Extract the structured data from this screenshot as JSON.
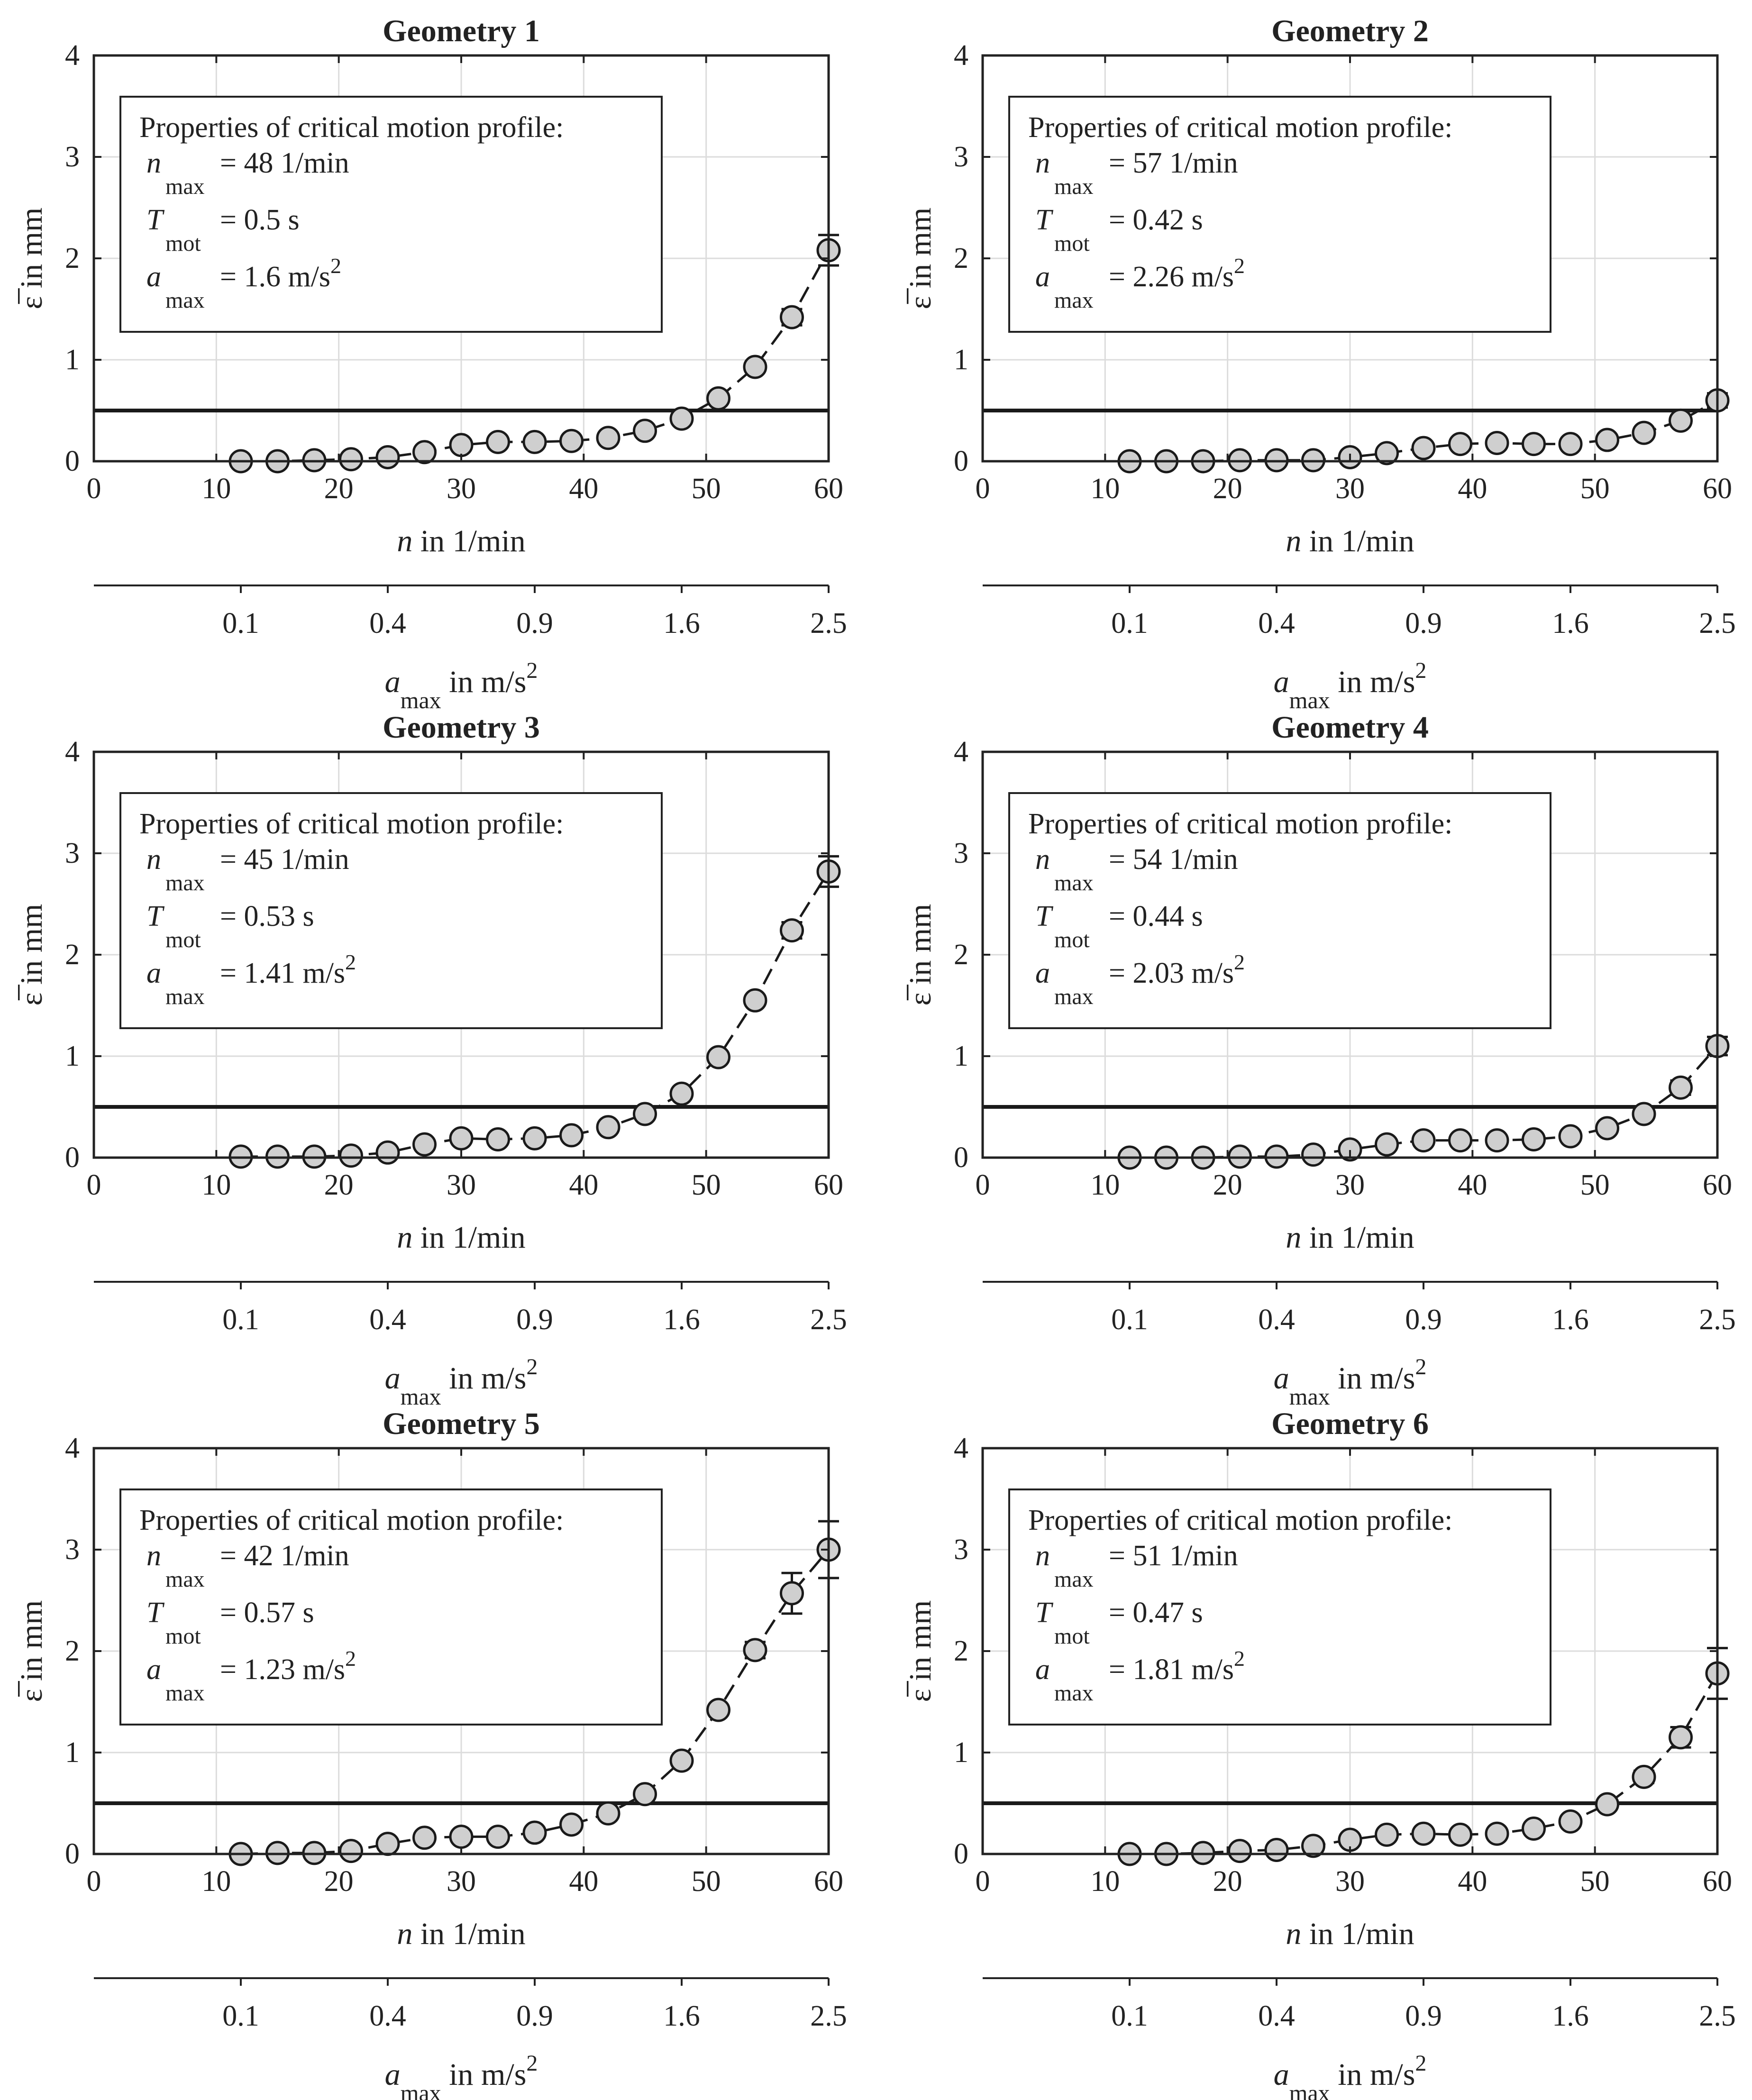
{
  "chart_data": [
    {
      "type": "scatter",
      "title": "Geometry 1",
      "xlabel": {
        "main": "n",
        "rest": " in 1/min"
      },
      "ylabel": "ε̅ in mm",
      "x2label": {
        "main": "a",
        "sub": "max",
        "rest": " in m/s",
        "sup": "2"
      },
      "xlim": [
        0,
        60
      ],
      "ylim": [
        0,
        4
      ],
      "xticks": [
        "0",
        "10",
        "20",
        "30",
        "40",
        "50",
        "60"
      ],
      "yticks": [
        "0",
        "1",
        "2",
        "3",
        "4"
      ],
      "x2ticks": [
        {
          "label": "0.1",
          "n": 12
        },
        {
          "label": "0.4",
          "n": 24
        },
        {
          "label": "0.9",
          "n": 36
        },
        {
          "label": "1.6",
          "n": 48
        },
        {
          "label": "2.5",
          "n": 60
        }
      ],
      "threshold": 0.5,
      "x": [
        12,
        15,
        18,
        21,
        24,
        27,
        30,
        33,
        36,
        39,
        42,
        45,
        48,
        51,
        54,
        57,
        60
      ],
      "y": [
        0,
        0,
        0.01,
        0.02,
        0.04,
        0.09,
        0.16,
        0.19,
        0.19,
        0.2,
        0.23,
        0.3,
        0.42,
        0.62,
        0.93,
        1.42,
        2.08
      ],
      "err": [
        0,
        0,
        0,
        0,
        0,
        0,
        0,
        0,
        0,
        0,
        0,
        0,
        0,
        0,
        0.05,
        0.08,
        0.15
      ],
      "info": {
        "heading": "Properties of critical motion profile:",
        "rows": [
          {
            "sym": "n",
            "sub": "max",
            "value": "= 48 1/min",
            "sup": ""
          },
          {
            "sym": "T",
            "sub": "mot",
            "value": "= 0.5 s",
            "sup": ""
          },
          {
            "sym": "a",
            "sub": "max",
            "value": "= 1.6 m/s",
            "sup": "2"
          }
        ]
      }
    },
    {
      "type": "scatter",
      "title": "Geometry 2",
      "xlabel": {
        "main": "n",
        "rest": " in 1/min"
      },
      "ylabel": "ε̅ in mm",
      "x2label": {
        "main": "a",
        "sub": "max",
        "rest": " in m/s",
        "sup": "2"
      },
      "xlim": [
        0,
        60
      ],
      "ylim": [
        0,
        4
      ],
      "xticks": [
        "0",
        "10",
        "20",
        "30",
        "40",
        "50",
        "60"
      ],
      "yticks": [
        "0",
        "1",
        "2",
        "3",
        "4"
      ],
      "x2ticks": [
        {
          "label": "0.1",
          "n": 12
        },
        {
          "label": "0.4",
          "n": 24
        },
        {
          "label": "0.9",
          "n": 36
        },
        {
          "label": "1.6",
          "n": 48
        },
        {
          "label": "2.5",
          "n": 60
        }
      ],
      "threshold": 0.5,
      "x": [
        12,
        15,
        18,
        21,
        24,
        27,
        30,
        33,
        36,
        39,
        42,
        45,
        48,
        51,
        54,
        57,
        60
      ],
      "y": [
        0,
        0,
        0,
        0.01,
        0.01,
        0.01,
        0.04,
        0.08,
        0.13,
        0.17,
        0.18,
        0.17,
        0.17,
        0.21,
        0.28,
        0.4,
        0.6
      ],
      "err": [
        0,
        0,
        0,
        0,
        0,
        0,
        0,
        0,
        0,
        0,
        0,
        0,
        0,
        0,
        0,
        0.04,
        0.07
      ],
      "info": {
        "heading": "Properties of critical motion profile:",
        "rows": [
          {
            "sym": "n",
            "sub": "max",
            "value": "= 57 1/min",
            "sup": ""
          },
          {
            "sym": "T",
            "sub": "mot",
            "value": "= 0.42 s",
            "sup": ""
          },
          {
            "sym": "a",
            "sub": "max",
            "value": "= 2.26 m/s",
            "sup": "2"
          }
        ]
      }
    },
    {
      "type": "scatter",
      "title": "Geometry 3",
      "xlabel": {
        "main": "n",
        "rest": " in 1/min"
      },
      "ylabel": "ε̅ in mm",
      "x2label": {
        "main": "a",
        "sub": "max",
        "rest": " in m/s",
        "sup": "2"
      },
      "xlim": [
        0,
        60
      ],
      "ylim": [
        0,
        4
      ],
      "xticks": [
        "0",
        "10",
        "20",
        "30",
        "40",
        "50",
        "60"
      ],
      "yticks": [
        "0",
        "1",
        "2",
        "3",
        "4"
      ],
      "x2ticks": [
        {
          "label": "0.1",
          "n": 12
        },
        {
          "label": "0.4",
          "n": 24
        },
        {
          "label": "0.9",
          "n": 36
        },
        {
          "label": "1.6",
          "n": 48
        },
        {
          "label": "2.5",
          "n": 60
        }
      ],
      "threshold": 0.5,
      "x": [
        12,
        15,
        18,
        21,
        24,
        27,
        30,
        33,
        36,
        39,
        42,
        45,
        48,
        51,
        54,
        57,
        60
      ],
      "y": [
        0.01,
        0.01,
        0.01,
        0.02,
        0.05,
        0.13,
        0.19,
        0.18,
        0.19,
        0.22,
        0.3,
        0.43,
        0.63,
        0.99,
        1.55,
        2.24,
        2.82
      ],
      "err": [
        0,
        0,
        0,
        0,
        0,
        0,
        0,
        0,
        0,
        0,
        0,
        0,
        0,
        0,
        0.05,
        0.08,
        0.15
      ],
      "info": {
        "heading": "Properties of critical motion profile:",
        "rows": [
          {
            "sym": "n",
            "sub": "max",
            "value": "= 45 1/min",
            "sup": ""
          },
          {
            "sym": "T",
            "sub": "mot",
            "value": "= 0.53 s",
            "sup": ""
          },
          {
            "sym": "a",
            "sub": "max",
            "value": "= 1.41 m/s",
            "sup": "2"
          }
        ]
      }
    },
    {
      "type": "scatter",
      "title": "Geometry 4",
      "xlabel": {
        "main": "n",
        "rest": " in 1/min"
      },
      "ylabel": "ε̅ in mm",
      "x2label": {
        "main": "a",
        "sub": "max",
        "rest": " in m/s",
        "sup": "2"
      },
      "xlim": [
        0,
        60
      ],
      "ylim": [
        0,
        4
      ],
      "xticks": [
        "0",
        "10",
        "20",
        "30",
        "40",
        "50",
        "60"
      ],
      "yticks": [
        "0",
        "1",
        "2",
        "3",
        "4"
      ],
      "x2ticks": [
        {
          "label": "0.1",
          "n": 12
        },
        {
          "label": "0.4",
          "n": 24
        },
        {
          "label": "0.9",
          "n": 36
        },
        {
          "label": "1.6",
          "n": 48
        },
        {
          "label": "2.5",
          "n": 60
        }
      ],
      "threshold": 0.5,
      "x": [
        12,
        15,
        18,
        21,
        24,
        27,
        30,
        33,
        36,
        39,
        42,
        45,
        48,
        51,
        54,
        57,
        60
      ],
      "y": [
        0,
        0,
        0,
        0.01,
        0.01,
        0.03,
        0.08,
        0.13,
        0.17,
        0.17,
        0.17,
        0.18,
        0.21,
        0.29,
        0.43,
        0.69,
        1.1
      ],
      "err": [
        0,
        0,
        0,
        0,
        0,
        0,
        0,
        0,
        0,
        0,
        0,
        0,
        0,
        0,
        0.05,
        0.07,
        0.09
      ],
      "info": {
        "heading": "Properties of critical motion profile:",
        "rows": [
          {
            "sym": "n",
            "sub": "max",
            "value": "= 54 1/min",
            "sup": ""
          },
          {
            "sym": "T",
            "sub": "mot",
            "value": "= 0.44 s",
            "sup": ""
          },
          {
            "sym": "a",
            "sub": "max",
            "value": "= 2.03 m/s",
            "sup": "2"
          }
        ]
      }
    },
    {
      "type": "scatter",
      "title": "Geometry 5",
      "xlabel": {
        "main": "n",
        "rest": " in 1/min"
      },
      "ylabel": "ε̅ in mm",
      "x2label": {
        "main": "a",
        "sub": "max",
        "rest": " in m/s",
        "sup": "2"
      },
      "xlim": [
        0,
        60
      ],
      "ylim": [
        0,
        4
      ],
      "xticks": [
        "0",
        "10",
        "20",
        "30",
        "40",
        "50",
        "60"
      ],
      "yticks": [
        "0",
        "1",
        "2",
        "3",
        "4"
      ],
      "x2ticks": [
        {
          "label": "0.1",
          "n": 12
        },
        {
          "label": "0.4",
          "n": 24
        },
        {
          "label": "0.9",
          "n": 36
        },
        {
          "label": "1.6",
          "n": 48
        },
        {
          "label": "2.5",
          "n": 60
        }
      ],
      "threshold": 0.5,
      "x": [
        12,
        15,
        18,
        21,
        24,
        27,
        30,
        33,
        36,
        39,
        42,
        45,
        48,
        51,
        54,
        57,
        60
      ],
      "y": [
        0,
        0.01,
        0.01,
        0.03,
        0.1,
        0.16,
        0.17,
        0.17,
        0.21,
        0.29,
        0.4,
        0.59,
        0.92,
        1.42,
        2.01,
        2.57,
        3.0
      ],
      "err": [
        0,
        0,
        0,
        0,
        0,
        0,
        0,
        0,
        0,
        0,
        0,
        0,
        0,
        0,
        0.08,
        0.2,
        0.28
      ],
      "info": {
        "heading": "Properties of critical motion profile:",
        "rows": [
          {
            "sym": "n",
            "sub": "max",
            "value": "= 42 1/min",
            "sup": ""
          },
          {
            "sym": "T",
            "sub": "mot",
            "value": "= 0.57 s",
            "sup": ""
          },
          {
            "sym": "a",
            "sub": "max",
            "value": "= 1.23 m/s",
            "sup": "2"
          }
        ]
      }
    },
    {
      "type": "scatter",
      "title": "Geometry 6",
      "xlabel": {
        "main": "n",
        "rest": " in 1/min"
      },
      "ylabel": "ε̅ in mm",
      "x2label": {
        "main": "a",
        "sub": "max",
        "rest": " in m/s",
        "sup": "2"
      },
      "xlim": [
        0,
        60
      ],
      "ylim": [
        0,
        4
      ],
      "xticks": [
        "0",
        "10",
        "20",
        "30",
        "40",
        "50",
        "60"
      ],
      "yticks": [
        "0",
        "1",
        "2",
        "3",
        "4"
      ],
      "x2ticks": [
        {
          "label": "0.1",
          "n": 12
        },
        {
          "label": "0.4",
          "n": 24
        },
        {
          "label": "0.9",
          "n": 36
        },
        {
          "label": "1.6",
          "n": 48
        },
        {
          "label": "2.5",
          "n": 60
        }
      ],
      "threshold": 0.5,
      "x": [
        12,
        15,
        18,
        21,
        24,
        27,
        30,
        33,
        36,
        39,
        42,
        45,
        48,
        51,
        54,
        57,
        60
      ],
      "y": [
        0,
        0,
        0.01,
        0.03,
        0.04,
        0.08,
        0.14,
        0.19,
        0.2,
        0.19,
        0.2,
        0.25,
        0.32,
        0.49,
        0.76,
        1.15,
        1.78
      ],
      "err": [
        0,
        0,
        0,
        0,
        0,
        0,
        0,
        0,
        0,
        0,
        0,
        0,
        0,
        0.04,
        0.06,
        0.1,
        0.25
      ],
      "info": {
        "heading": "Properties of critical motion profile:",
        "rows": [
          {
            "sym": "n",
            "sub": "max",
            "value": "= 51 1/min",
            "sup": ""
          },
          {
            "sym": "T",
            "sub": "mot",
            "value": "= 0.47 s",
            "sup": ""
          },
          {
            "sym": "a",
            "sub": "max",
            "value": "= 1.81 m/s",
            "sup": "2"
          }
        ]
      }
    }
  ]
}
